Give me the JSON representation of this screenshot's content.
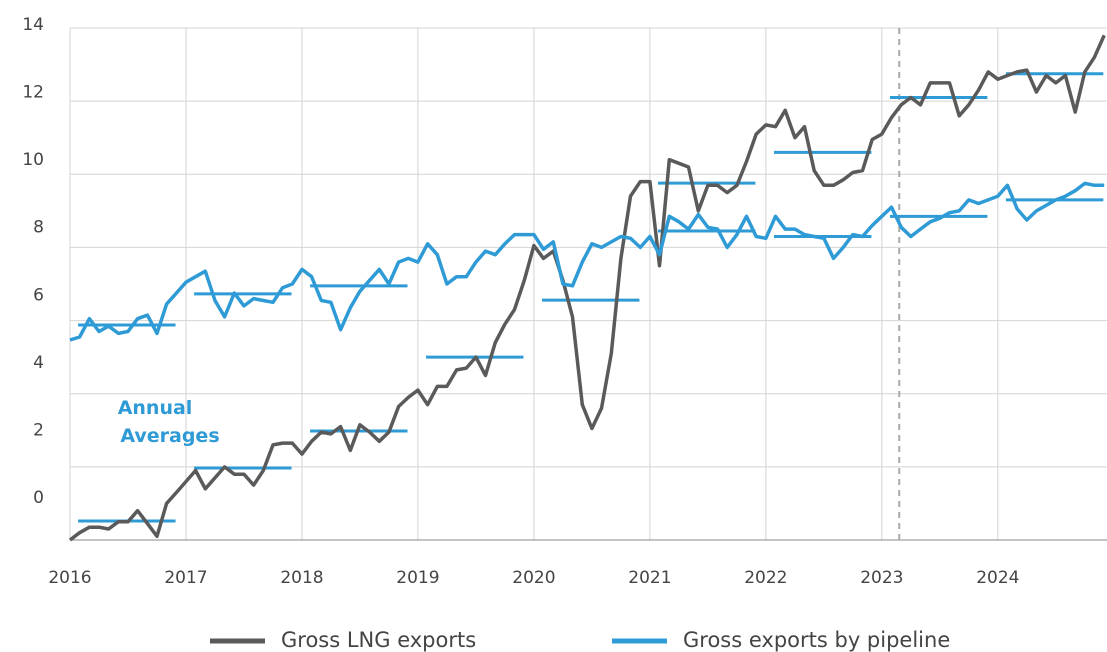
{
  "chart_data": {
    "type": "line",
    "x": [
      2016,
      2016.083,
      2016.167,
      2016.25,
      2016.333,
      2016.417,
      2016.5,
      2016.583,
      2016.667,
      2016.75,
      2016.833,
      2016.917,
      2017,
      2017.083,
      2017.167,
      2017.25,
      2017.333,
      2017.417,
      2017.5,
      2017.583,
      2017.667,
      2017.75,
      2017.833,
      2017.917,
      2018,
      2018.083,
      2018.167,
      2018.25,
      2018.333,
      2018.417,
      2018.5,
      2018.583,
      2018.667,
      2018.75,
      2018.833,
      2018.917,
      2019,
      2019.083,
      2019.167,
      2019.25,
      2019.333,
      2019.417,
      2019.5,
      2019.583,
      2019.667,
      2019.75,
      2019.833,
      2019.917,
      2020,
      2020.083,
      2020.167,
      2020.25,
      2020.333,
      2020.417,
      2020.5,
      2020.583,
      2020.667,
      2020.75,
      2020.833,
      2020.917,
      2021,
      2021.083,
      2021.167,
      2021.25,
      2021.333,
      2021.417,
      2021.5,
      2021.583,
      2021.667,
      2021.75,
      2021.833,
      2021.917,
      2022,
      2022.083,
      2022.167,
      2022.25,
      2022.333,
      2022.417,
      2022.5,
      2022.583,
      2022.667,
      2022.75,
      2022.833,
      2022.917,
      2023,
      2023.083,
      2023.167,
      2023.25,
      2023.333,
      2023.417,
      2023.5,
      2023.583,
      2023.667,
      2023.75,
      2023.833,
      2023.917,
      2024,
      2024.083,
      2024.167,
      2024.25,
      2024.333,
      2024.417,
      2024.5,
      2024.583,
      2024.667,
      2024.75,
      2024.833,
      2024.917
    ],
    "series": [
      {
        "name": "Gross LNG exports",
        "color": "#5a5a5a",
        "values": [
          0.0,
          0.2,
          0.35,
          0.35,
          0.3,
          0.5,
          0.5,
          0.8,
          0.45,
          0.1,
          1.0,
          1.3,
          1.6,
          1.9,
          1.4,
          1.7,
          2.0,
          1.8,
          1.8,
          1.5,
          1.9,
          2.6,
          2.65,
          2.65,
          2.35,
          2.7,
          2.95,
          2.9,
          3.1,
          2.45,
          3.15,
          2.95,
          2.7,
          2.95,
          3.65,
          3.9,
          4.1,
          3.7,
          4.2,
          4.2,
          4.65,
          4.7,
          5.0,
          4.5,
          5.4,
          5.9,
          6.3,
          7.1,
          8.05,
          7.7,
          7.9,
          7.1,
          6.1,
          3.7,
          3.05,
          3.6,
          5.1,
          7.7,
          9.4,
          9.8,
          9.8,
          7.5,
          10.4,
          10.3,
          10.2,
          9.0,
          9.7,
          9.7,
          9.5,
          9.7,
          10.35,
          11.1,
          11.35,
          11.3,
          11.75,
          11.0,
          11.3,
          10.1,
          9.7,
          9.7,
          9.85,
          10.05,
          10.1,
          10.95,
          11.1,
          11.55,
          11.9,
          12.1,
          11.9,
          12.5,
          12.5,
          12.5,
          11.6,
          11.9,
          12.3,
          12.8,
          12.6,
          12.7,
          12.8,
          12.85,
          12.25,
          12.7,
          12.5,
          12.7,
          11.7,
          12.8,
          13.2,
          13.8
        ]
      },
      {
        "name": "Gross exports by pipeline",
        "color": "#2e9bd6",
        "values": [
          5.47,
          5.55,
          6.05,
          5.7,
          5.85,
          5.65,
          5.7,
          6.05,
          6.15,
          5.65,
          6.45,
          6.75,
          7.05,
          7.2,
          7.35,
          6.55,
          6.1,
          6.75,
          6.4,
          6.6,
          6.55,
          6.5,
          6.9,
          7.0,
          7.4,
          7.2,
          6.55,
          6.5,
          5.75,
          6.35,
          6.8,
          7.1,
          7.4,
          7.0,
          7.6,
          7.7,
          7.6,
          8.1,
          7.8,
          7.0,
          7.2,
          7.2,
          7.6,
          7.9,
          7.8,
          8.1,
          8.35,
          8.35,
          8.35,
          7.95,
          8.15,
          7.0,
          6.95,
          7.6,
          8.1,
          8.0,
          8.15,
          8.3,
          8.25,
          8.0,
          8.3,
          7.8,
          8.85,
          8.7,
          8.5,
          8.9,
          8.55,
          8.5,
          8.0,
          8.35,
          8.85,
          8.3,
          8.25,
          8.85,
          8.5,
          8.5,
          8.35,
          8.3,
          8.25,
          7.7,
          8.0,
          8.35,
          8.3,
          8.6,
          8.85,
          9.1,
          8.55,
          8.3,
          8.5,
          8.7,
          8.8,
          8.95,
          9.0,
          9.3,
          9.2,
          9.3,
          9.4,
          9.7,
          9.05,
          8.75,
          9.0,
          9.15,
          9.3,
          9.4,
          9.55,
          9.75,
          9.7,
          9.7
        ]
      }
    ],
    "annual_averages": {
      "label": "Annual Averages",
      "color": "#2e9bd6",
      "years": [
        2016,
        2017,
        2018,
        2019,
        2020,
        2021,
        2022,
        2023,
        2024
      ],
      "lng": [
        0.52,
        1.97,
        2.98,
        5.0,
        6.56,
        9.76,
        10.6,
        12.1,
        12.75
      ],
      "pipeline": [
        5.88,
        6.73,
        6.95,
        null,
        null,
        8.45,
        8.3,
        8.85,
        9.3
      ]
    },
    "xlim": [
      2016,
      2024.95
    ],
    "xticks": [
      2016,
      2017,
      2018,
      2019,
      2020,
      2021,
      2022,
      2023,
      2024
    ],
    "ylim": [
      0,
      14
    ],
    "yticks": [
      0,
      2,
      4,
      6,
      8,
      10,
      12,
      14
    ],
    "vline": 2023.15,
    "grid": true,
    "legend": "bottom"
  }
}
